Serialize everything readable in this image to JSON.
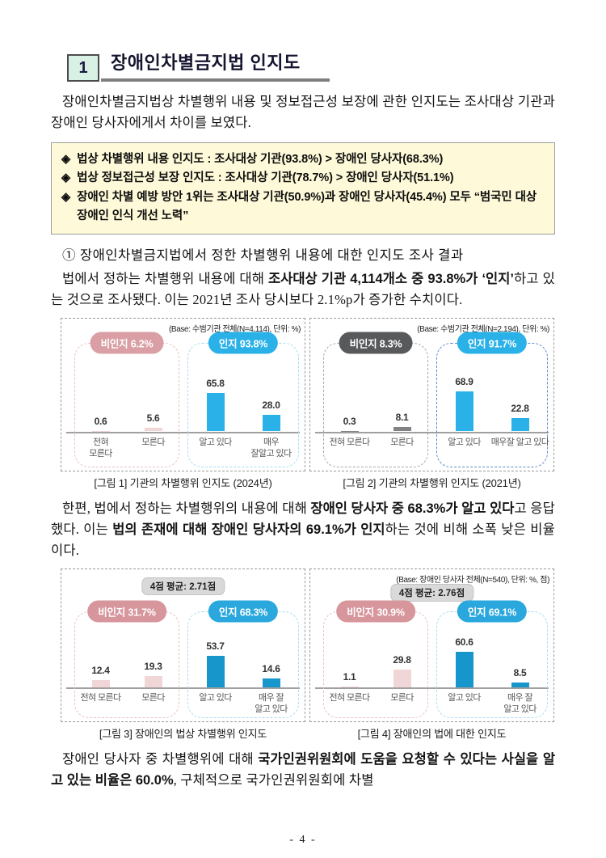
{
  "page": {
    "number": "- 4 -"
  },
  "header": {
    "number": "1",
    "title": "장애인차별금지법 인지도"
  },
  "summary_box": {
    "items": [
      {
        "bullet": "◈",
        "text": "법상 차별행위 내용 인지도 : 조사대상 기관(93.8%) > 장애인 당사자(68.3%)"
      },
      {
        "bullet": "◈",
        "text": "법상 정보접근성 보장 인지도 : 조사대상 기관(78.7%) > 장애인 당사자(51.1%)"
      },
      {
        "bullet": "◈",
        "text": "장애인 차별 예방 방안 1위는 조사대상 기관(50.9%)과 장애인 당사자(45.4%) 모두 “범국민 대상 장애인 인식 개선 노력”"
      }
    ]
  },
  "section_heading": "① 장애인차별금지법에서 정한 차별행위 내용에 대한 인지도 조사 결과",
  "paragraphs": {
    "intro": [
      {
        "t": "장애인차별금지법상 차별행위 내용 및 정보접근성 보장에 관한 인지도는 조사대상 기관과 장애인 당사자에게서 차이를 보였다.",
        "b": false
      }
    ],
    "law": [
      {
        "t": "법에서 정하는 차별행위 내용에 대해 ",
        "b": false
      },
      {
        "t": "조사대상 기관 4,114개소 중 93.8%가 ‘인지’",
        "b": true
      },
      {
        "t": "하고 있는 것으로 조사됐다. 이는 2021년 조사 당시보다 2.1%p가 증가한 수치이다.",
        "b": false
      }
    ],
    "person": [
      {
        "t": "한편, 법에서 정하는 차별행위의 내용에 대해 ",
        "b": false
      },
      {
        "t": "장애인 당사자 중 68.3%가 알고 있다",
        "b": true
      },
      {
        "t": "고 응답했다. 이는 ",
        "b": false
      },
      {
        "t": "법의 존재에 대해 장애인 당사자의 69.1%가 인지",
        "b": true
      },
      {
        "t": "하는 것에 비해 소폭 낮은 비율이다.",
        "b": false
      }
    ],
    "nhrc": [
      {
        "t": "장애인 당사자 중 차별행위에 대해 ",
        "b": false
      },
      {
        "t": "국가인권위원회에 도움을 요청할 수 있다는 사실을 알고 있는 비율은 60.0%",
        "b": true
      },
      {
        "t": ", 구체적으로 국가인권위원회에 차별",
        "b": false
      }
    ]
  },
  "colors": {
    "accent_blue": "#29b1e8",
    "accent_blue_dark": "#1796cb",
    "accent_pink": "#d99fa5",
    "accent_gray": "#58595b",
    "summary_bg": "#fefad9",
    "header_box_bg": "#d9f0e4"
  },
  "chart_data": [
    {
      "type": "bar",
      "base_note": "(Base: 수범기관 전체(N=4,114), 단위: %)",
      "avg_label": null,
      "caption": "[그림 1] 기관의 차별행위 인지도 (2024년)",
      "groups": [
        {
          "label": "비인지 6.2%",
          "total": 6.2,
          "categories": [
            "전혀|모른다",
            "모른다"
          ],
          "values": [
            0.6,
            5.6
          ],
          "colors": {
            "pill": "#d99fa5",
            "border": "#e8c0c4",
            "bar": "#f1d6d8"
          }
        },
        {
          "label": "인지 93.8%",
          "total": 93.8,
          "categories": [
            "알고 있다",
            "매우|잘알고 있다"
          ],
          "values": [
            65.8,
            28.0
          ],
          "colors": {
            "pill": "#29b1e8",
            "border": "#a6ddf4",
            "bar": "#29b1e8"
          }
        }
      ]
    },
    {
      "type": "bar",
      "base_note": "(Base: 수범기관 전체(N=2,194), 단위: %)",
      "avg_label": null,
      "caption": "[그림 2] 기관의 차별행위 인지도 (2021년)",
      "groups": [
        {
          "label": "비인지 8.3%",
          "total": 8.3,
          "categories": [
            "전혀 모른다",
            "모른다"
          ],
          "values": [
            0.3,
            8.1
          ],
          "colors": {
            "pill": "#58595b",
            "border": "#a6a6a6",
            "bar": "#808285"
          }
        },
        {
          "label": "인지 91.7%",
          "total": 91.7,
          "categories": [
            "알고 있다",
            "매우잘 알고 있다"
          ],
          "values": [
            68.9,
            22.8
          ],
          "colors": {
            "pill": "#29b1e8",
            "border": "#5b8ac5",
            "bar": "#29b1e8"
          }
        }
      ]
    },
    {
      "type": "bar",
      "base_note": null,
      "avg_label": "4점 평균: 2.71점",
      "caption": "[그림 3] 장애인의 법상 차별행위 인지도",
      "groups": [
        {
          "label": "비인지 31.7%",
          "total": 31.7,
          "categories": [
            "전혀 모른다",
            "모른다"
          ],
          "values": [
            12.4,
            19.3
          ],
          "colors": {
            "pill": "#d7959c",
            "border": "#e8c0c4",
            "bar": "#f1d6d8"
          }
        },
        {
          "label": "인지 68.3%",
          "total": 68.3,
          "categories": [
            "알고 있다",
            "매우 잘|알고 있다"
          ],
          "values": [
            53.7,
            14.6
          ],
          "colors": {
            "pill": "#2aa7dc",
            "border": "#aadcf0",
            "bar": "#1796cb"
          }
        }
      ]
    },
    {
      "type": "bar",
      "base_note": "(Base: 장애인 당사자 전체(N=540), 단위: %, 점)",
      "avg_label": "4점 평균: 2.76점",
      "caption": "[그림 4] 장애인의 법에 대한 인지도",
      "groups": [
        {
          "label": "비인지 30.9%",
          "total": 30.9,
          "categories": [
            "전혀 모른다",
            "모른다"
          ],
          "values": [
            1.1,
            29.8
          ],
          "colors": {
            "pill": "#d7959c",
            "border": "#e8c0c4",
            "bar": "#f1d6d8"
          }
        },
        {
          "label": "인지 69.1%",
          "total": 69.1,
          "categories": [
            "알고 있다",
            "매우 잘|알고 있다"
          ],
          "values": [
            60.6,
            8.5
          ],
          "colors": {
            "pill": "#2aa7dc",
            "border": "#aadcf0",
            "bar": "#1796cb"
          }
        }
      ]
    }
  ]
}
